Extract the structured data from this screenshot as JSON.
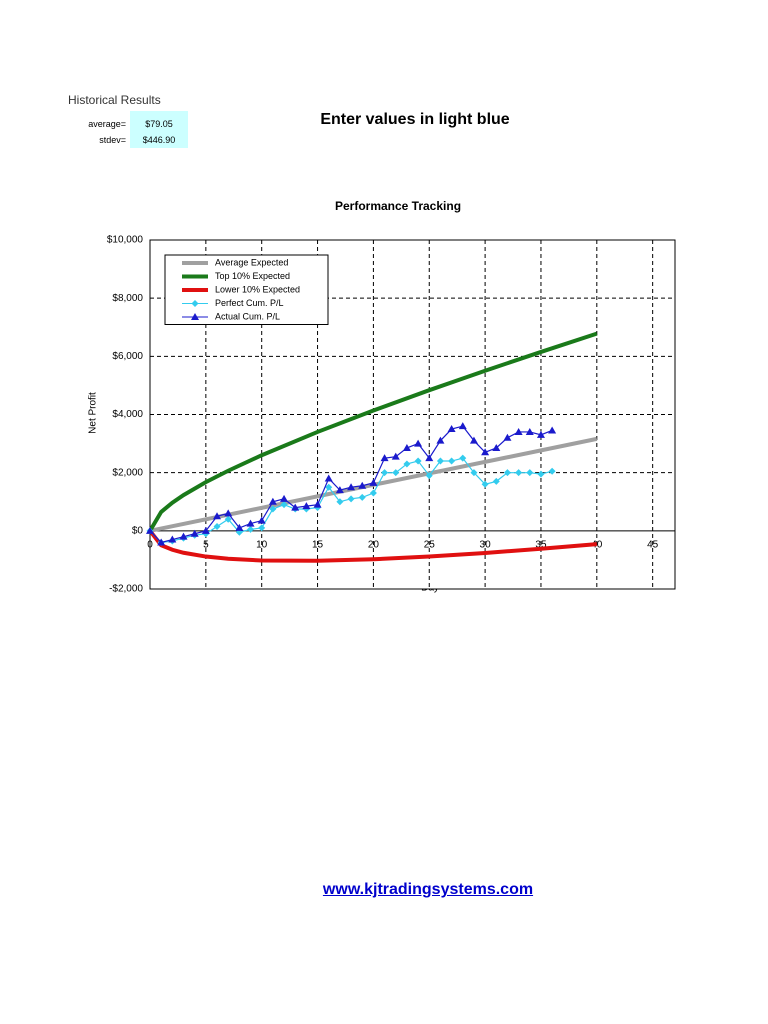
{
  "sheet": {
    "title": "Historical Results",
    "stats": [
      {
        "label": "average=",
        "value": "$79.05"
      },
      {
        "label": "stdev=",
        "value": "$446.90"
      }
    ],
    "instruction": "Enter values in light blue",
    "link": "www.kjtradingsystems.com"
  },
  "chart_data": {
    "type": "line",
    "title": "Performance Tracking",
    "x_label": "Day",
    "y_label": "Net Profit",
    "xlim": [
      0,
      47
    ],
    "xticks": [
      0,
      5,
      10,
      15,
      20,
      25,
      30,
      35,
      40,
      45
    ],
    "ylim": [
      -2000,
      10000
    ],
    "yticks": [
      {
        "value": -2000,
        "label": "-$2,000"
      },
      {
        "value": 0,
        "label": "$0"
      },
      {
        "value": 2000,
        "label": "$2,000"
      },
      {
        "value": 4000,
        "label": "$4,000"
      },
      {
        "value": 6000,
        "label": "$6,000"
      },
      {
        "value": 8000,
        "label": "$8,000"
      },
      {
        "value": 10000,
        "label": "$10,000"
      }
    ],
    "grid": true,
    "legend": "upper left",
    "series": [
      {
        "name": "Average Expected",
        "color": "#a0a0a0",
        "marker": "none",
        "x": [
          0,
          40
        ],
        "values": [
          0,
          3162
        ]
      },
      {
        "name": "Top 10% Expected",
        "color": "#1a7a1a",
        "marker": "none",
        "x": [
          0,
          1,
          2,
          3,
          5,
          7,
          10,
          15,
          20,
          25,
          30,
          35,
          40
        ],
        "values": [
          0,
          651,
          967,
          1228,
          1674,
          2066,
          2599,
          3401,
          4139,
          4836,
          5505,
          6151,
          6780
        ]
      },
      {
        "name": "Lower 10% Expected",
        "color": "#e01010",
        "marker": "none",
        "x": [
          0,
          1,
          2,
          3,
          5,
          7,
          10,
          15,
          20,
          25,
          30,
          35,
          40
        ],
        "values": [
          0,
          -493,
          -651,
          -754,
          -884,
          -960,
          -1019,
          -1029,
          -977,
          -884,
          -761,
          -617,
          -456
        ]
      },
      {
        "name": "Perfect Cum. P/L",
        "color": "#33ccee",
        "marker": "diamond",
        "x": [
          0,
          1,
          2,
          3,
          4,
          5,
          6,
          7,
          8,
          9,
          10,
          11,
          12,
          13,
          14,
          15,
          16,
          17,
          18,
          19,
          20,
          21,
          22,
          23,
          24,
          25,
          26,
          27,
          28,
          29,
          30,
          31,
          32,
          33,
          34,
          35,
          36
        ],
        "values": [
          0,
          -400,
          -350,
          -250,
          -150,
          -100,
          150,
          400,
          -50,
          50,
          100,
          750,
          900,
          750,
          750,
          800,
          1500,
          1000,
          1100,
          1150,
          1300,
          2000,
          2000,
          2300,
          2400,
          1900,
          2400,
          2400,
          2500,
          2000,
          1600,
          1700,
          2000,
          2000,
          2000,
          1950,
          2050
        ]
      },
      {
        "name": "Actual Cum. P/L",
        "color": "#1a1acc",
        "marker": "triangle",
        "x": [
          0,
          1,
          2,
          3,
          4,
          5,
          6,
          7,
          8,
          9,
          10,
          11,
          12,
          13,
          14,
          15,
          16,
          17,
          18,
          19,
          20,
          21,
          22,
          23,
          24,
          25,
          26,
          27,
          28,
          29,
          30,
          31,
          32,
          33,
          34,
          35,
          36
        ],
        "values": [
          0,
          -400,
          -300,
          -200,
          -100,
          0,
          500,
          600,
          100,
          250,
          350,
          1000,
          1100,
          800,
          850,
          900,
          1800,
          1400,
          1500,
          1550,
          1650,
          2500,
          2550,
          2850,
          3000,
          2500,
          3100,
          3500,
          3600,
          3100,
          2700,
          2850,
          3200,
          3400,
          3400,
          3300,
          3450
        ]
      }
    ]
  }
}
